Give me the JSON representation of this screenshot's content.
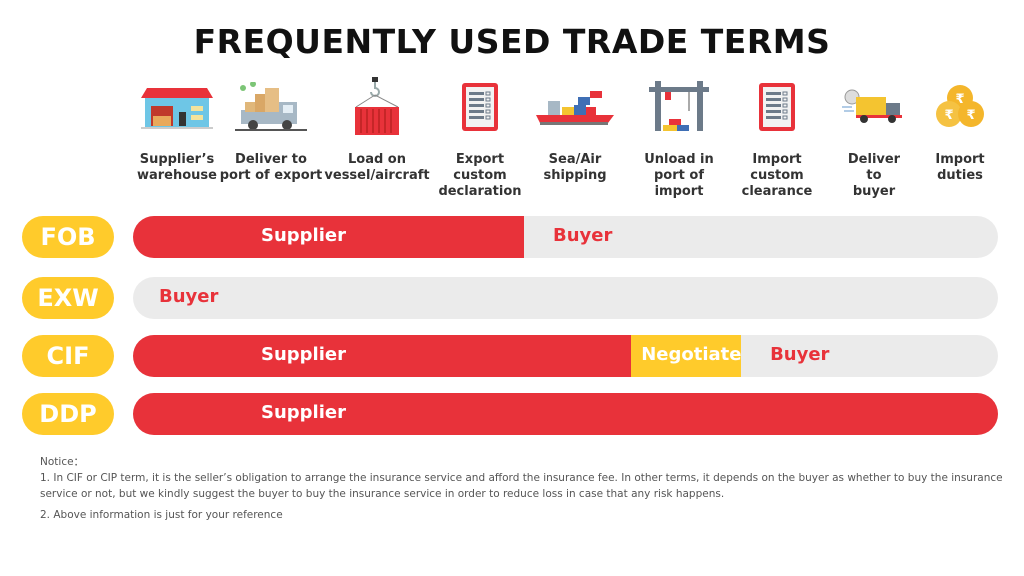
{
  "title": "FREQUENTLY USED TRADE TERMS",
  "colors": {
    "supplier": "#E8323A",
    "buyer_bg": "#EBEBEB",
    "negotiate": "#FFCB2B",
    "badge": "#FFCB2B",
    "buyer_text": "#E8323A"
  },
  "stages": [
    {
      "label": "Supplier’s\nwarehouse",
      "icon": "warehouse-icon"
    },
    {
      "label": "Deliver to\nport of export",
      "icon": "truck-boxes-icon"
    },
    {
      "label": "Load on\nvessel/aircraft",
      "icon": "container-crane-icon"
    },
    {
      "label": "Export\ncustom\ndeclaration",
      "icon": "document-icon"
    },
    {
      "label": "Sea/Air\nshipping",
      "icon": "cargo-ship-icon"
    },
    {
      "label": "Unload in\nport of\nimport",
      "icon": "gantry-crane-icon"
    },
    {
      "label": "Import\ncustom\nclearance",
      "icon": "document-icon"
    },
    {
      "label": "Deliver\nto\nbuyer",
      "icon": "delivery-truck-icon"
    },
    {
      "label": "Import\nduties",
      "icon": "rupee-coins-icon"
    }
  ],
  "terms": [
    {
      "name": "FOB",
      "segments": [
        {
          "label": "Supplier",
          "type": "supplier",
          "percent": 45.2
        },
        {
          "label": "Buyer",
          "type": "buyer",
          "percent": 54.8
        }
      ]
    },
    {
      "name": "EXW",
      "segments": [
        {
          "label": "Buyer",
          "type": "buyer",
          "percent": 100
        }
      ]
    },
    {
      "name": "CIF",
      "segments": [
        {
          "label": "Supplier",
          "type": "supplier",
          "percent": 57.6
        },
        {
          "label": "Negotiate",
          "type": "negotiate",
          "percent": 12.7
        },
        {
          "label": "Buyer",
          "type": "buyer",
          "percent": 29.7
        }
      ]
    },
    {
      "name": "DDP",
      "segments": [
        {
          "label": "Supplier",
          "type": "supplier",
          "percent": 100
        }
      ]
    }
  ],
  "notice": {
    "heading": "Notice：",
    "item1": "1. In CIF or CIP term, it is the seller’s obligation to arrange the insurance service and afford the insurance fee. In other terms, it depends on the buyer as whether to buy the insurance service or not, but we kindly suggest the buyer to buy the insurance service in order to reduce loss in case that any risk happens.",
    "item2": "2. Above information is just for your reference"
  }
}
